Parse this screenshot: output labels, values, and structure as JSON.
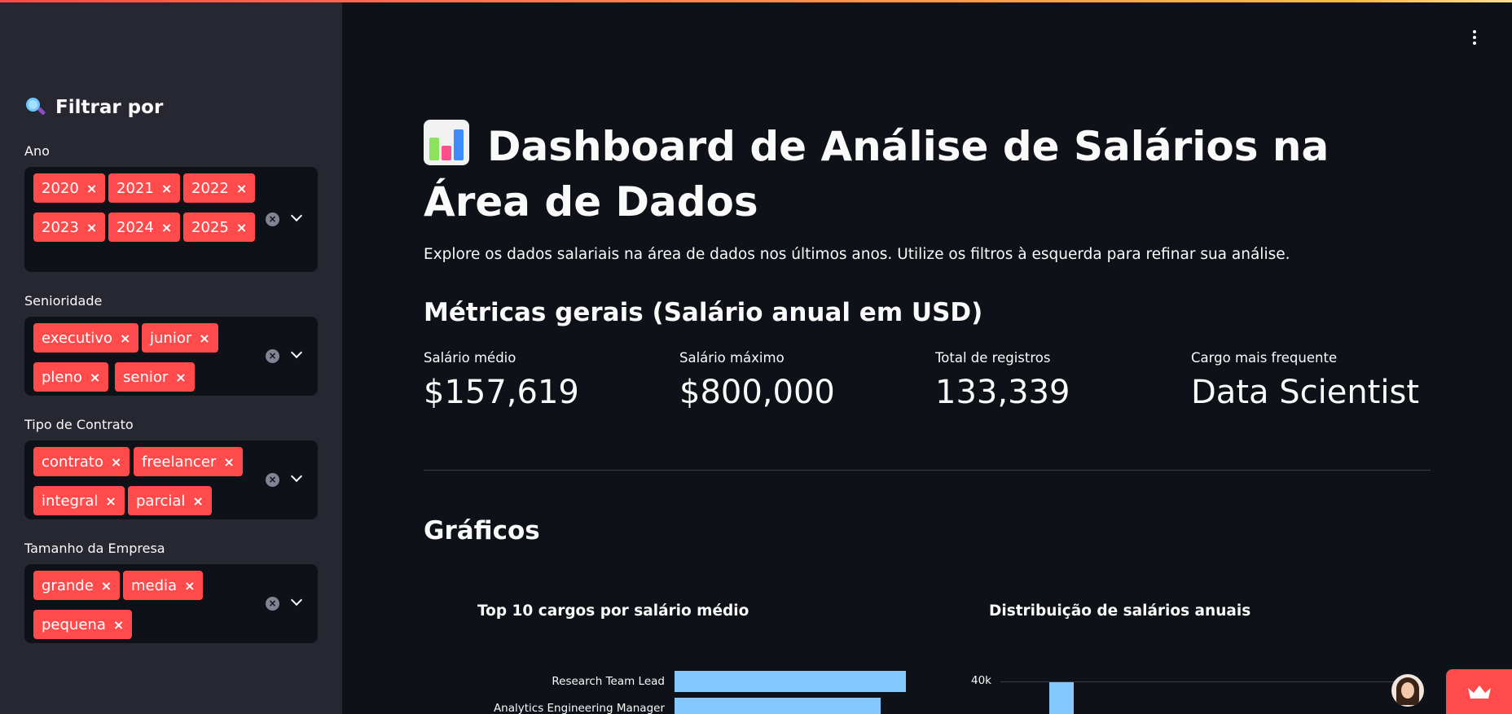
{
  "sidebar": {
    "header_label": "Filtrar por",
    "filters": [
      {
        "label": "Ano",
        "chips": [
          "2020",
          "2021",
          "2022",
          "2023",
          "2024",
          "2025"
        ]
      },
      {
        "label": "Senioridade",
        "chips": [
          "executivo",
          "junior",
          "pleno",
          "senior"
        ]
      },
      {
        "label": "Tipo de Contrato",
        "chips": [
          "contrato",
          "freelancer",
          "integral",
          "parcial"
        ]
      },
      {
        "label": "Tamanho da Empresa",
        "chips": [
          "grande",
          "media",
          "pequena"
        ]
      }
    ],
    "chip_remove_glyph": "×",
    "clear_glyph": "×"
  },
  "main": {
    "title": "Dashboard de Análise de Salários na Área de Dados",
    "intro": "Explore os dados salariais na área de dados nos últimos anos. Utilize os filtros à esquerda para refinar sua análise.",
    "metrics_heading": "Métricas gerais (Salário anual em USD)",
    "metrics": [
      {
        "label": "Salário médio",
        "value": "$157,619"
      },
      {
        "label": "Salário máximo",
        "value": "$800,000"
      },
      {
        "label": "Total de registros",
        "value": "133,339"
      },
      {
        "label": "Cargo mais frequente",
        "value": "Data Scientist"
      }
    ],
    "charts_heading": "Gráficos"
  },
  "colors": {
    "accent": "#ff4b4b",
    "bar": "#83c9ff",
    "background": "#0e1117",
    "sidebar": "#262730"
  },
  "icons": {
    "sidebar_header": "magnifying-glass-icon",
    "title": "bar-chart-icon",
    "menu": "kebab-menu-icon",
    "deploy": "crown-icon"
  },
  "chart_data": [
    {
      "type": "bar",
      "orientation": "horizontal",
      "title": "Top 10 cargos por salário médio",
      "categories": [
        "Research Team Lead",
        "Analytics Engineering Manager"
      ],
      "values": [
        1.0,
        0.89
      ]
    },
    {
      "type": "bar",
      "title": "Distribuição de salários anuais",
      "y_ticks": [
        "40k"
      ],
      "values": [
        40000
      ]
    }
  ]
}
